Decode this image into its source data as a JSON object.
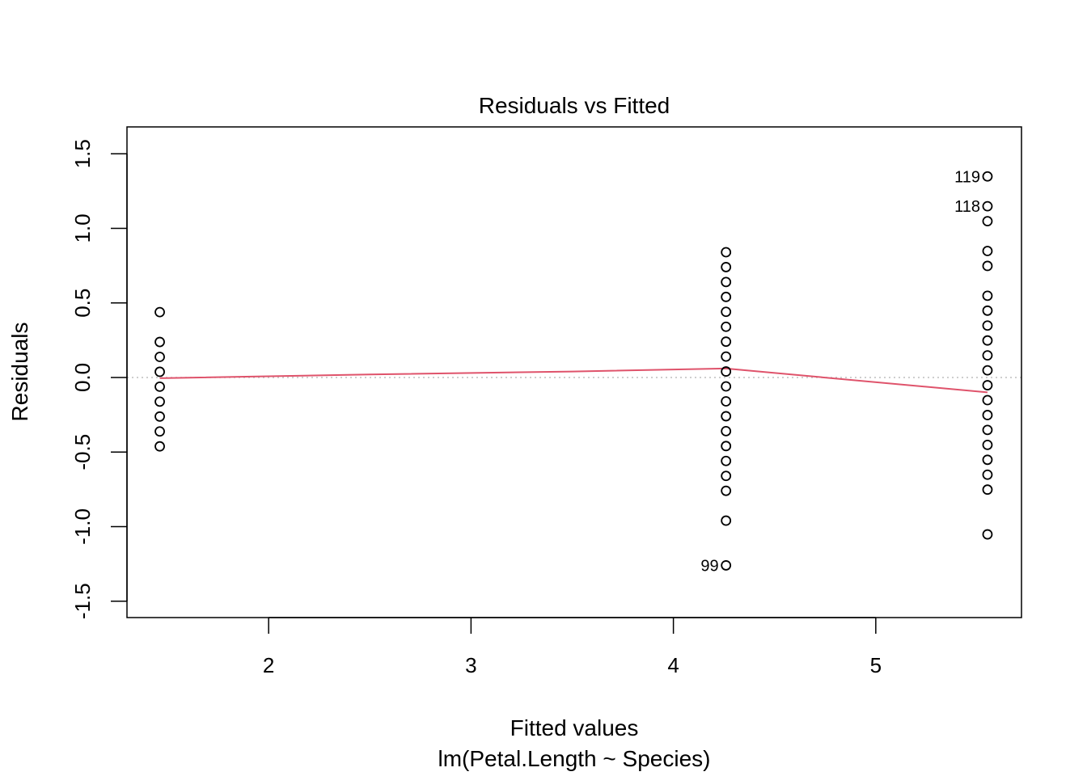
{
  "chart_data": {
    "type": "scatter",
    "title": "Residuals vs Fitted",
    "xlabel": "Fitted values",
    "sublabel": "lm(Petal.Length ~ Species)",
    "ylabel": "Residuals",
    "xlim": [
      1.3,
      5.72
    ],
    "ylim": [
      -1.61,
      1.68
    ],
    "xticks": [
      2,
      3,
      4,
      5
    ],
    "yticks": [
      -1.5,
      -1.0,
      -0.5,
      0.0,
      0.5,
      1.0,
      1.5
    ],
    "xtick_labels": [
      "2",
      "3",
      "4",
      "5"
    ],
    "ytick_labels": [
      "-1.5",
      "-1.0",
      "-0.5",
      "0.0",
      "0.5",
      "1.0",
      "1.5"
    ],
    "reference_line": {
      "y": 0,
      "style": "dotted",
      "color": "#bebebe"
    },
    "point_color": "#000000",
    "smooth_color": "#df536b",
    "series": [
      {
        "x": 1.462,
        "y": [
          0.438,
          0.238,
          0.138,
          0.038,
          -0.062,
          -0.162,
          -0.262,
          -0.362,
          -0.462
        ]
      },
      {
        "x": 4.26,
        "y": [
          0.84,
          0.74,
          0.64,
          0.54,
          0.44,
          0.34,
          0.24,
          0.14,
          0.04,
          -0.06,
          -0.16,
          -0.26,
          -0.36,
          -0.46,
          -0.56,
          -0.66,
          -0.76,
          -0.96,
          -1.26
        ]
      },
      {
        "x": 5.552,
        "y": [
          1.348,
          1.148,
          1.048,
          0.848,
          0.748,
          0.548,
          0.448,
          0.348,
          0.248,
          0.148,
          0.048,
          -0.052,
          -0.152,
          -0.252,
          -0.352,
          -0.452,
          -0.552,
          -0.652,
          -0.752,
          -1.052
        ]
      }
    ],
    "smooth_line": {
      "x": [
        1.462,
        2.5,
        3.5,
        4.26,
        5.552
      ],
      "y": [
        -0.005,
        0.02,
        0.04,
        0.06,
        -0.1
      ]
    },
    "labeled_points": [
      {
        "label": "119",
        "x": 5.552,
        "y": 1.348
      },
      {
        "label": "118",
        "x": 5.552,
        "y": 1.148
      },
      {
        "label": "99",
        "x": 4.26,
        "y": -1.26
      }
    ]
  }
}
